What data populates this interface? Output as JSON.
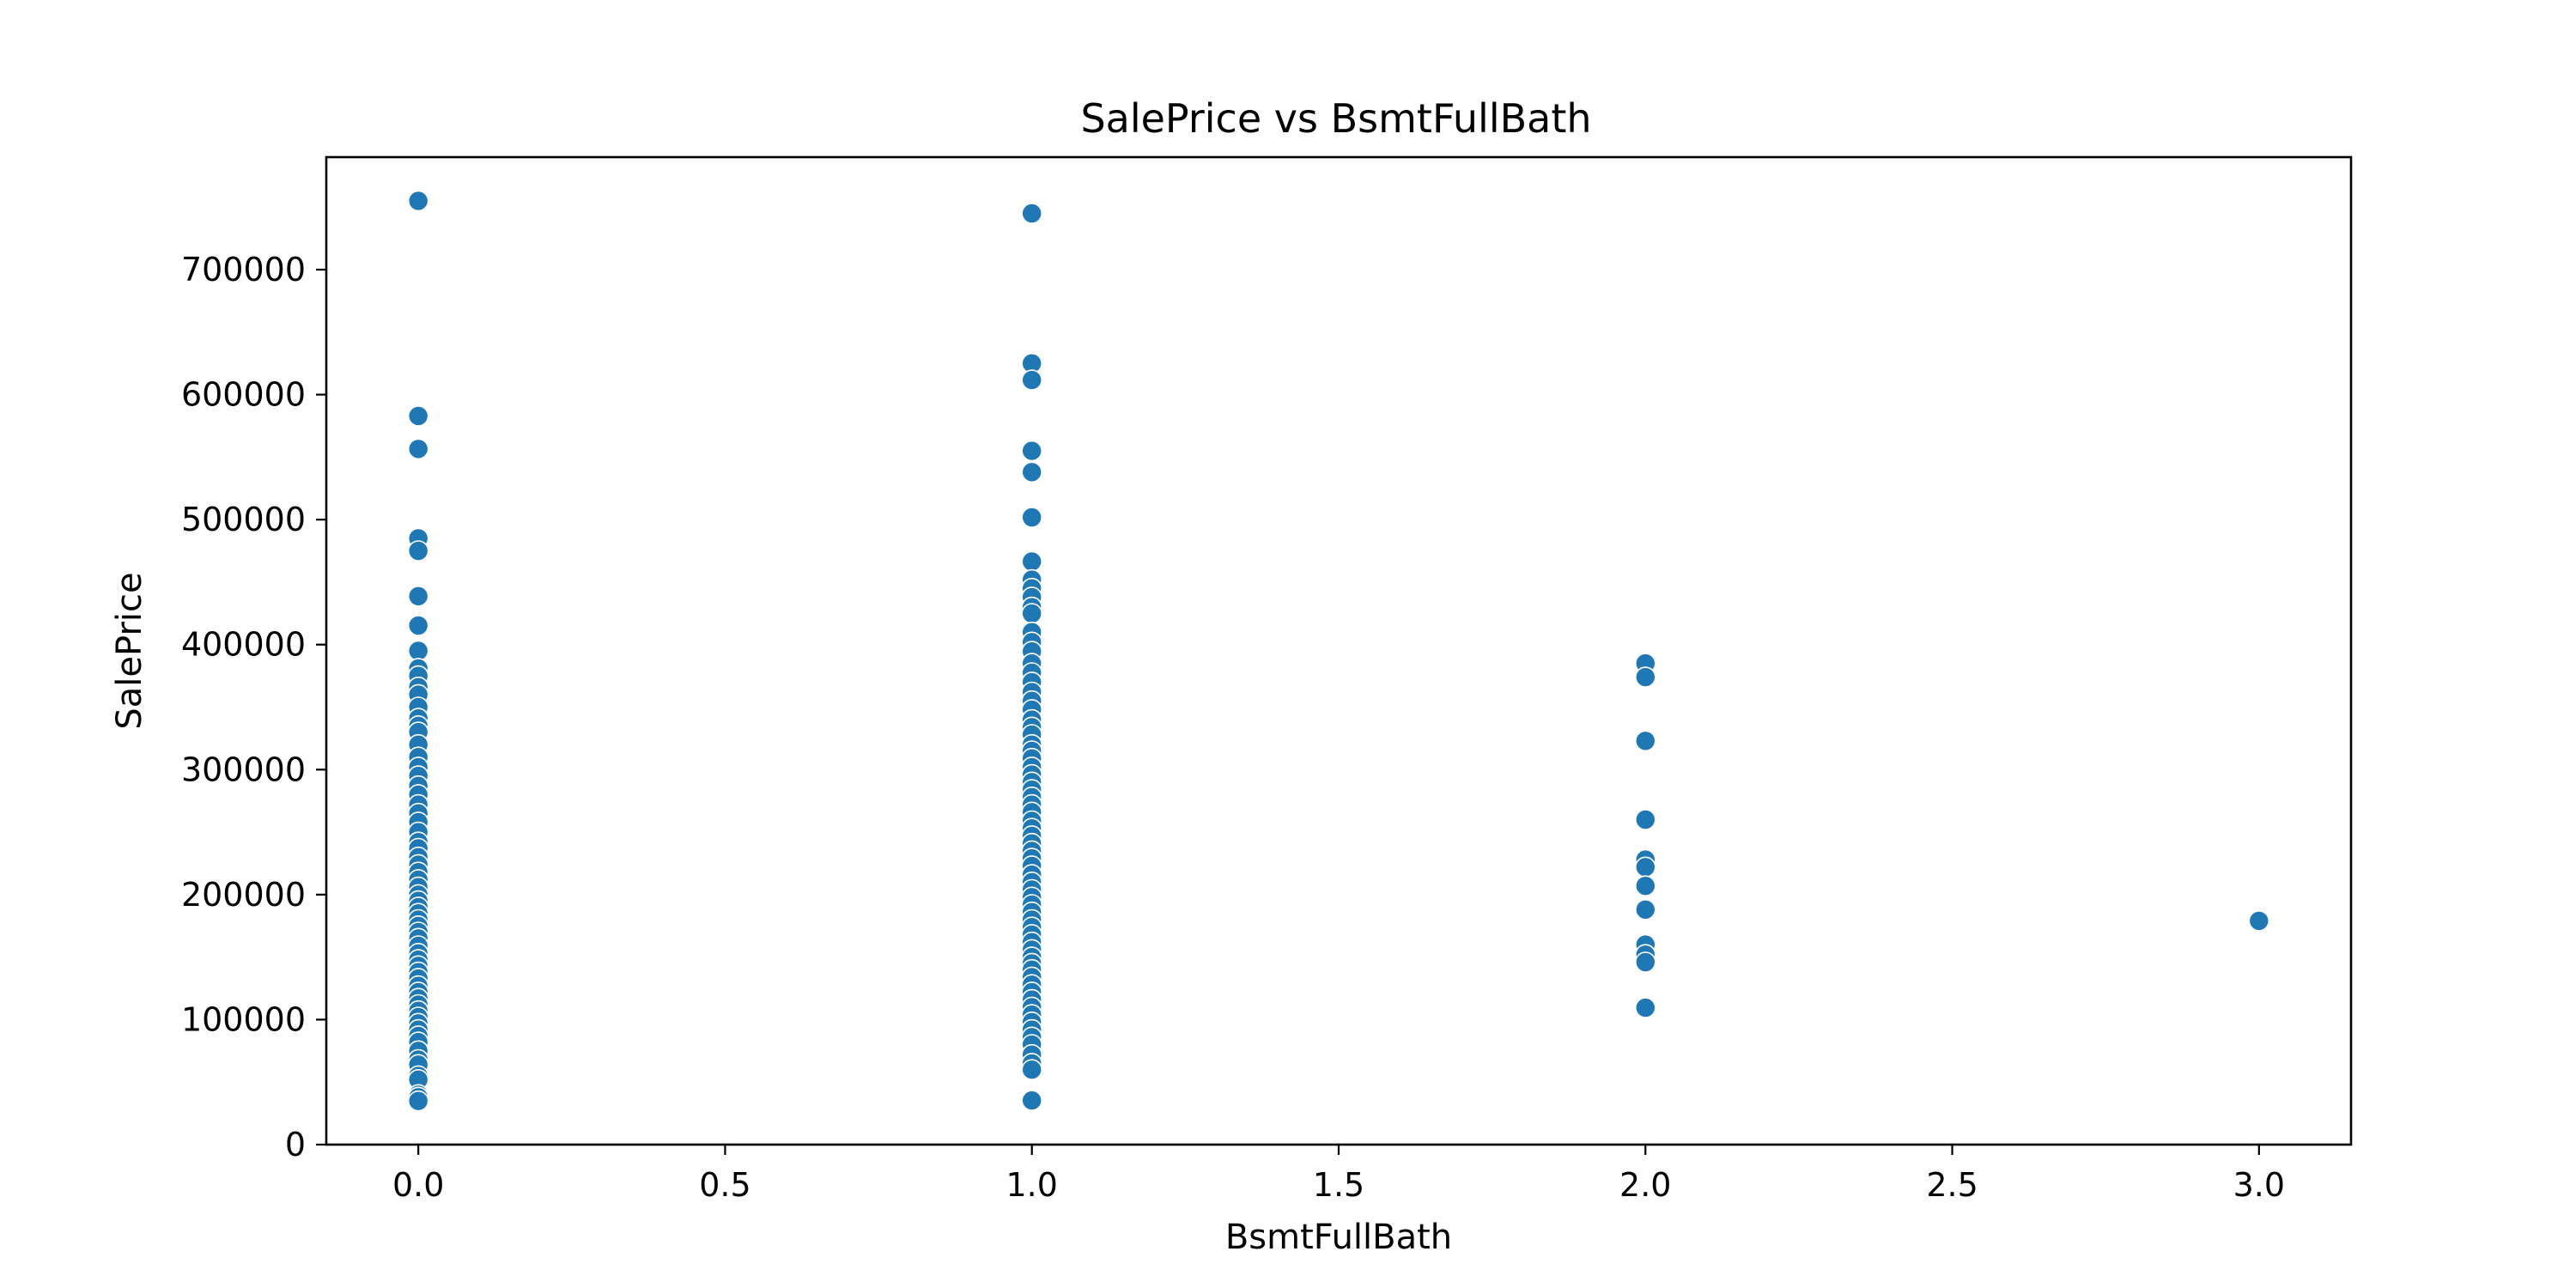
{
  "chart_data": {
    "type": "scatter",
    "title": "SalePrice vs BsmtFullBath",
    "xlabel": "BsmtFullBath",
    "ylabel": "SalePrice",
    "xlim": [
      -0.15,
      3.15
    ],
    "ylim": [
      0,
      790000
    ],
    "x_ticks": [
      0.0,
      0.5,
      1.0,
      1.5,
      2.0,
      2.5,
      3.0
    ],
    "x_tick_labels": [
      "0.0",
      "0.5",
      "1.0",
      "1.5",
      "2.0",
      "2.5",
      "3.0"
    ],
    "y_ticks": [
      0,
      100000,
      200000,
      300000,
      400000,
      500000,
      600000,
      700000
    ],
    "y_tick_labels": [
      "0",
      "100000",
      "200000",
      "300000",
      "400000",
      "500000",
      "600000",
      "700000"
    ],
    "grid": false,
    "marker_color": "#1f77b4",
    "series": [
      {
        "points": [
          [
            0,
            755000
          ],
          [
            0,
            582933
          ],
          [
            0,
            556581
          ],
          [
            0,
            485000
          ],
          [
            0,
            475000
          ],
          [
            0,
            438780
          ],
          [
            0,
            415298
          ],
          [
            0,
            395000
          ],
          [
            0,
            381000
          ],
          [
            0,
            375000
          ],
          [
            0,
            366000
          ],
          [
            0,
            360000
          ],
          [
            0,
            350000
          ],
          [
            0,
            341000
          ],
          [
            0,
            335000
          ],
          [
            0,
            330000
          ],
          [
            0,
            320000
          ],
          [
            0,
            310000
          ],
          [
            0,
            302000
          ],
          [
            0,
            295000
          ],
          [
            0,
            287000
          ],
          [
            0,
            280000
          ],
          [
            0,
            272000
          ],
          [
            0,
            265000
          ],
          [
            0,
            258000
          ],
          [
            0,
            250000
          ],
          [
            0,
            242000
          ],
          [
            0,
            237000
          ],
          [
            0,
            230000
          ],
          [
            0,
            224000
          ],
          [
            0,
            218000
          ],
          [
            0,
            212000
          ],
          [
            0,
            206000
          ],
          [
            0,
            200000
          ],
          [
            0,
            195000
          ],
          [
            0,
            190000
          ],
          [
            0,
            185000
          ],
          [
            0,
            180000
          ],
          [
            0,
            175000
          ],
          [
            0,
            170000
          ],
          [
            0,
            165000
          ],
          [
            0,
            159000
          ],
          [
            0,
            153000
          ],
          [
            0,
            148000
          ],
          [
            0,
            143000
          ],
          [
            0,
            138000
          ],
          [
            0,
            133000
          ],
          [
            0,
            127000
          ],
          [
            0,
            122000
          ],
          [
            0,
            117000
          ],
          [
            0,
            112000
          ],
          [
            0,
            107000
          ],
          [
            0,
            102000
          ],
          [
            0,
            97000
          ],
          [
            0,
            92000
          ],
          [
            0,
            87000
          ],
          [
            0,
            82000
          ],
          [
            0,
            75000
          ],
          [
            0,
            68000
          ],
          [
            0,
            64000
          ],
          [
            0,
            55000
          ],
          [
            0,
            52000
          ],
          [
            0,
            40000
          ],
          [
            0,
            37900
          ],
          [
            0,
            34900
          ],
          [
            1,
            745000
          ],
          [
            1,
            625000
          ],
          [
            1,
            611657
          ],
          [
            1,
            555000
          ],
          [
            1,
            538000
          ],
          [
            1,
            501837
          ],
          [
            1,
            466500
          ],
          [
            1,
            451950
          ],
          [
            1,
            445000
          ],
          [
            1,
            438000
          ],
          [
            1,
            430000
          ],
          [
            1,
            424870
          ],
          [
            1,
            410000
          ],
          [
            1,
            402000
          ],
          [
            1,
            394617
          ],
          [
            1,
            385000
          ],
          [
            1,
            377500
          ],
          [
            1,
            370000
          ],
          [
            1,
            362000
          ],
          [
            1,
            355000
          ],
          [
            1,
            348000
          ],
          [
            1,
            340000
          ],
          [
            1,
            334000
          ],
          [
            1,
            328000
          ],
          [
            1,
            320000
          ],
          [
            1,
            315000
          ],
          [
            1,
            309000
          ],
          [
            1,
            302000
          ],
          [
            1,
            296000
          ],
          [
            1,
            290000
          ],
          [
            1,
            284000
          ],
          [
            1,
            278000
          ],
          [
            1,
            272000
          ],
          [
            1,
            266000
          ],
          [
            1,
            259000
          ],
          [
            1,
            253000
          ],
          [
            1,
            247000
          ],
          [
            1,
            241000
          ],
          [
            1,
            235000
          ],
          [
            1,
            229000
          ],
          [
            1,
            223000
          ],
          [
            1,
            216000
          ],
          [
            1,
            210000
          ],
          [
            1,
            204000
          ],
          [
            1,
            198000
          ],
          [
            1,
            192000
          ],
          [
            1,
            186000
          ],
          [
            1,
            180000
          ],
          [
            1,
            174000
          ],
          [
            1,
            168000
          ],
          [
            1,
            162000
          ],
          [
            1,
            156000
          ],
          [
            1,
            150000
          ],
          [
            1,
            145000
          ],
          [
            1,
            140000
          ],
          [
            1,
            134000
          ],
          [
            1,
            128000
          ],
          [
            1,
            122000
          ],
          [
            1,
            116000
          ],
          [
            1,
            110000
          ],
          [
            1,
            104000
          ],
          [
            1,
            98000
          ],
          [
            1,
            92000
          ],
          [
            1,
            86000
          ],
          [
            1,
            80000
          ],
          [
            1,
            72000
          ],
          [
            1,
            65000
          ],
          [
            1,
            60000
          ],
          [
            1,
            35311
          ],
          [
            2,
            385000
          ],
          [
            2,
            374000
          ],
          [
            2,
            323000
          ],
          [
            2,
            260000
          ],
          [
            2,
            228000
          ],
          [
            2,
            222000
          ],
          [
            2,
            207000
          ],
          [
            2,
            188000
          ],
          [
            2,
            160000
          ],
          [
            2,
            152000
          ],
          [
            2,
            146000
          ],
          [
            2,
            109500
          ],
          [
            3,
            179000
          ]
        ]
      }
    ]
  }
}
